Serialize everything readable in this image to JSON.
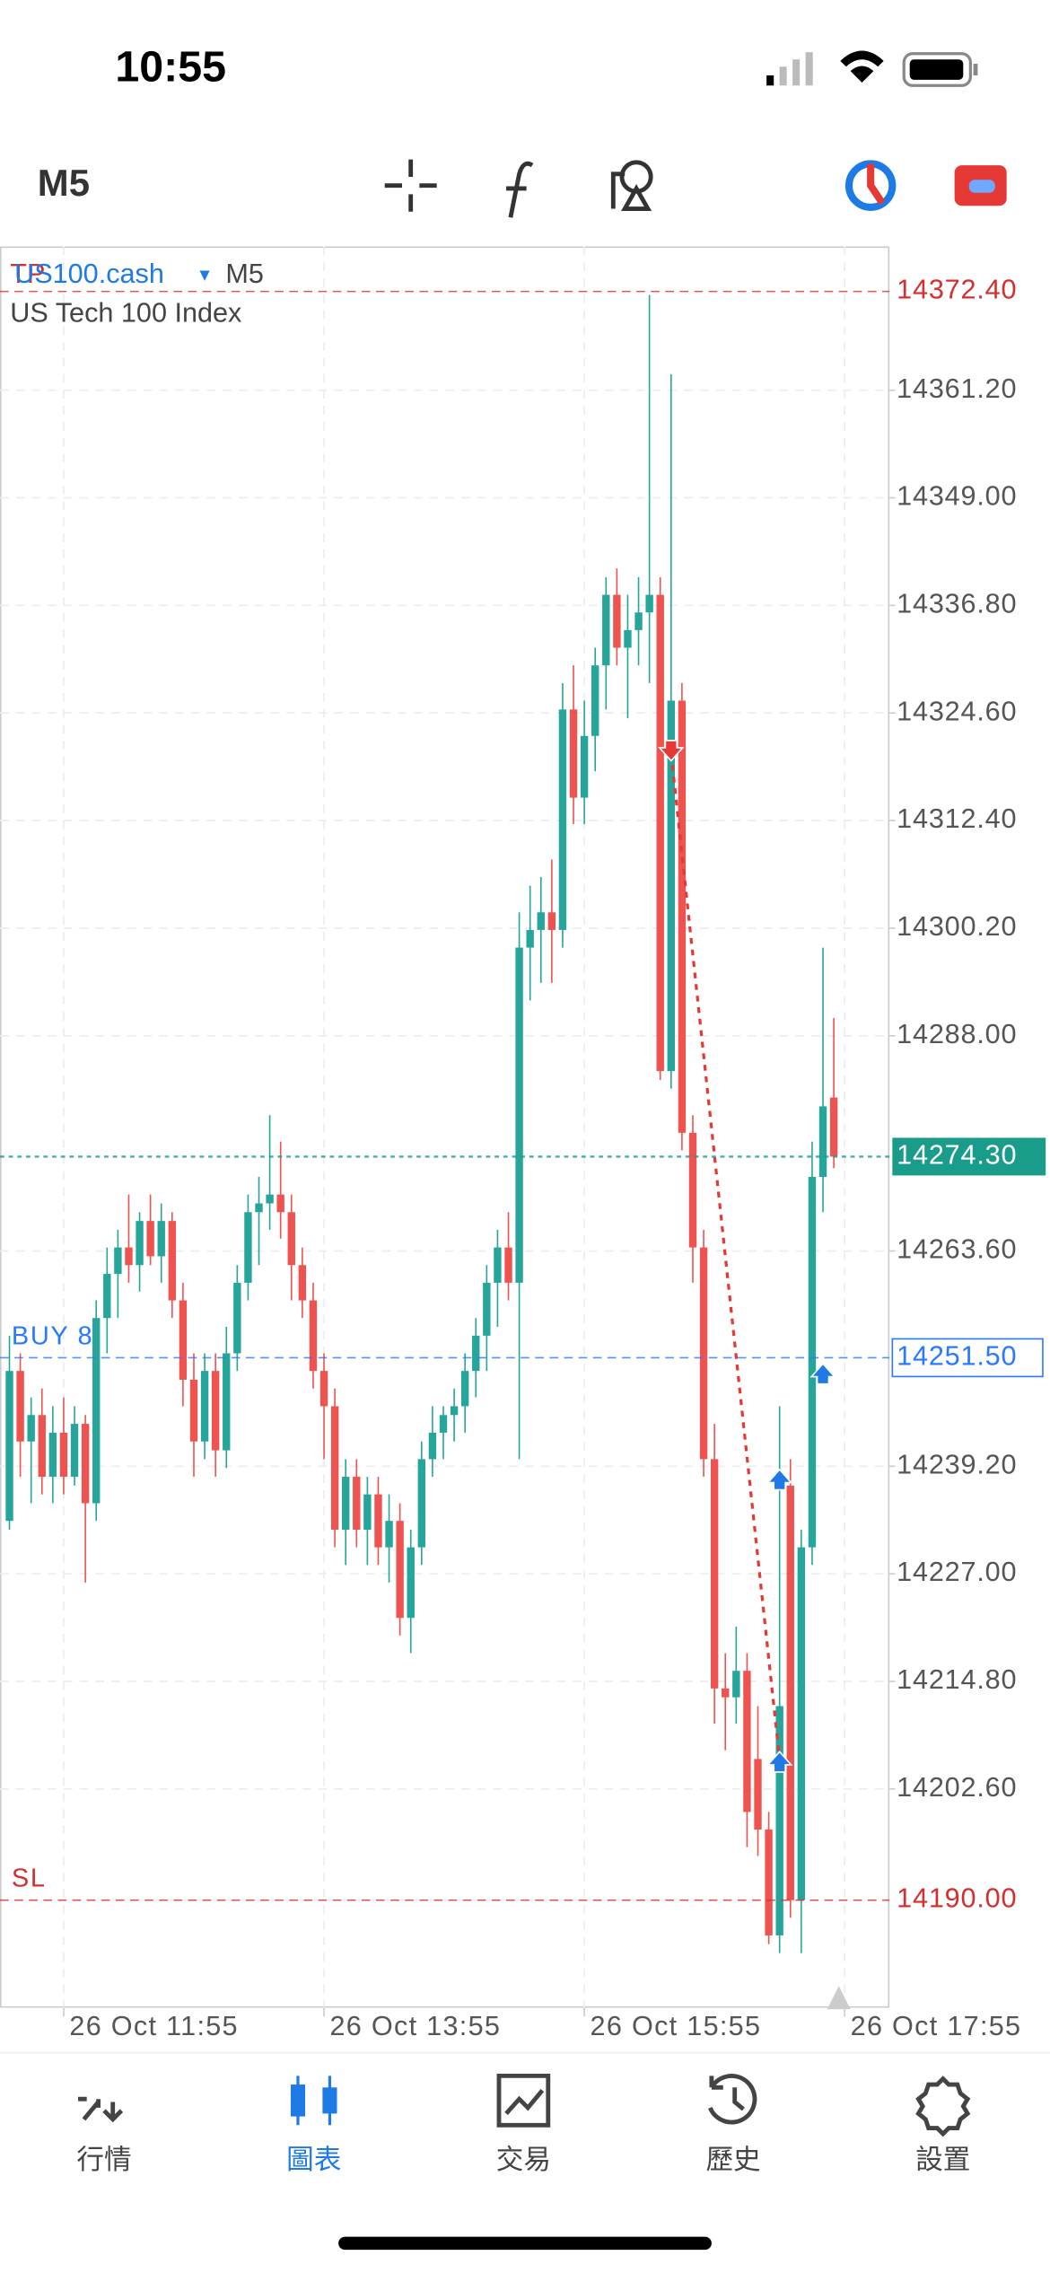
{
  "status_bar": {
    "time": "10:55"
  },
  "toolbar": {
    "timeframe": "M5"
  },
  "chart_data": {
    "type": "candlestick",
    "symbol": "US100.cash",
    "timeframe": "M5",
    "description": "US Tech 100 Index",
    "up_color": "#26a69a",
    "down_color": "#ef5350",
    "open": [
      14233,
      14250,
      14242,
      14245,
      14238,
      14243,
      14238,
      14244,
      14235,
      14256,
      14261,
      14264,
      14262,
      14267,
      14263,
      14267,
      14258,
      14249,
      14242,
      14250,
      14241,
      14252,
      14260,
      14268,
      14269,
      14270,
      14268,
      14262,
      14258,
      14250,
      14246,
      14232,
      14238,
      14232,
      14236,
      14230,
      14233,
      14222,
      14230,
      14240,
      14243,
      14245,
      14246,
      14250,
      14254,
      14260,
      14264,
      14260,
      14298,
      14300,
      14302,
      14300,
      14325,
      14315,
      14322,
      14330,
      14338,
      14332,
      14334,
      14336,
      14338,
      14284,
      14326,
      14277,
      14264,
      14240,
      14214,
      14213,
      14216,
      14206,
      14198,
      14186,
      14237,
      14190,
      14230,
      14272,
      14281
    ],
    "high": [
      14254,
      14252,
      14247,
      14248,
      14246,
      14247,
      14246,
      14245,
      14258,
      14264,
      14266,
      14270,
      14268,
      14270,
      14269,
      14268,
      14260,
      14252,
      14252,
      14252,
      14255,
      14262,
      14270,
      14272,
      14279,
      14276,
      14270,
      14264,
      14260,
      14252,
      14248,
      14240,
      14240,
      14238,
      14238,
      14236,
      14235,
      14232,
      14242,
      14246,
      14246,
      14248,
      14252,
      14256,
      14262,
      14266,
      14268,
      14302,
      14305,
      14306,
      14308,
      14328,
      14330,
      14326,
      14332,
      14340,
      14341,
      14338,
      14340,
      14372,
      14340,
      14363,
      14328,
      14279,
      14266,
      14244,
      14218,
      14221,
      14218,
      14212,
      14200,
      14246,
      14240,
      14232,
      14276,
      14298,
      14290
    ],
    "low": [
      14232,
      14238,
      14235,
      14236,
      14235,
      14236,
      14237,
      14226,
      14233,
      14252,
      14256,
      14260,
      14259,
      14262,
      14260,
      14256,
      14246,
      14238,
      14240,
      14238,
      14239,
      14250,
      14258,
      14262,
      14266,
      14265,
      14258,
      14256,
      14248,
      14240,
      14230,
      14228,
      14230,
      14228,
      14228,
      14226,
      14220,
      14218,
      14228,
      14238,
      14240,
      14242,
      14243,
      14247,
      14250,
      14255,
      14258,
      14240,
      14292,
      14294,
      14294,
      14298,
      14312,
      14312,
      14318,
      14325,
      14330,
      14324,
      14330,
      14328,
      14283,
      14282,
      14275,
      14260,
      14238,
      14210,
      14207,
      14210,
      14196,
      14195,
      14185,
      14184,
      14188,
      14184,
      14228,
      14268,
      14273
    ],
    "close": [
      14250,
      14242,
      14245,
      14238,
      14243,
      14238,
      14244,
      14235,
      14256,
      14261,
      14264,
      14262,
      14267,
      14263,
      14267,
      14258,
      14249,
      14242,
      14250,
      14241,
      14252,
      14260,
      14268,
      14269,
      14270,
      14268,
      14262,
      14258,
      14250,
      14246,
      14232,
      14238,
      14232,
      14236,
      14230,
      14233,
      14222,
      14230,
      14240,
      14243,
      14245,
      14246,
      14250,
      14254,
      14260,
      14264,
      14260,
      14298,
      14300,
      14302,
      14300,
      14325,
      14315,
      14322,
      14330,
      14338,
      14332,
      14334,
      14336,
      14338,
      14284,
      14326,
      14277,
      14264,
      14240,
      14214,
      14213,
      14216,
      14200,
      14198,
      14186,
      14212,
      14190,
      14230,
      14272,
      14280,
      14274.3
    ],
    "xlim": [
      -0.87,
      81.13
    ],
    "ylim": [
      14177.8,
      14377.5
    ],
    "xticks": [
      {
        "value": 5,
        "label": "26 Oct 11:55"
      },
      {
        "value": 29,
        "label": "26 Oct 13:55"
      },
      {
        "value": 53,
        "label": "26 Oct 15:55"
      },
      {
        "value": 77,
        "label": "26 Oct 17:55"
      }
    ],
    "yticks": [
      {
        "value": 14361.2,
        "label": "14361.20"
      },
      {
        "value": 14349,
        "label": "14349.00"
      },
      {
        "value": 14336.8,
        "label": "14336.80"
      },
      {
        "value": 14324.6,
        "label": "14324.60"
      },
      {
        "value": 14312.4,
        "label": "14312.40"
      },
      {
        "value": 14300.2,
        "label": "14300.20"
      },
      {
        "value": 14288,
        "label": "14288.00"
      },
      {
        "value": 14263.6,
        "label": "14263.60"
      },
      {
        "value": 14239.2,
        "label": "14239.20"
      },
      {
        "value": 14227,
        "label": "14227.00"
      },
      {
        "value": 14214.8,
        "label": "14214.80"
      },
      {
        "value": 14202.6,
        "label": "14202.60"
      }
    ],
    "grid": true,
    "price_lines": [
      {
        "label": "TP",
        "value": 14372.4,
        "value_label": "14372.40",
        "color": "#d32f2f",
        "box": "none"
      },
      {
        "value": 14274.3,
        "value_label": "14274.30",
        "color": "#1a9c8a",
        "box": "filled"
      },
      {
        "label": "BUY 8",
        "value": 14251.5,
        "value_label": "14251.50",
        "color": "#2979ff",
        "box": "outline"
      },
      {
        "label": "SL",
        "value": 14190,
        "value_label": "14190.00",
        "color": "#d32f2f",
        "box": "none"
      }
    ],
    "trade_markers": [
      {
        "x": 61,
        "y": 14320,
        "color": "#e53935",
        "dir": "down"
      },
      {
        "x": 71,
        "y": 14238,
        "color": "#1e7be6",
        "dir": "up"
      },
      {
        "x": 71,
        "y": 14206,
        "color": "#1e7be6",
        "dir": "up"
      },
      {
        "x": 75,
        "y": 14250,
        "color": "#1e7be6",
        "dir": "up"
      }
    ],
    "trade_links": [
      [
        0,
        2
      ]
    ]
  },
  "tab_bar": {
    "active": 1,
    "tabs": [
      "行情",
      "圖表",
      "交易",
      "歷史",
      "設置"
    ]
  }
}
